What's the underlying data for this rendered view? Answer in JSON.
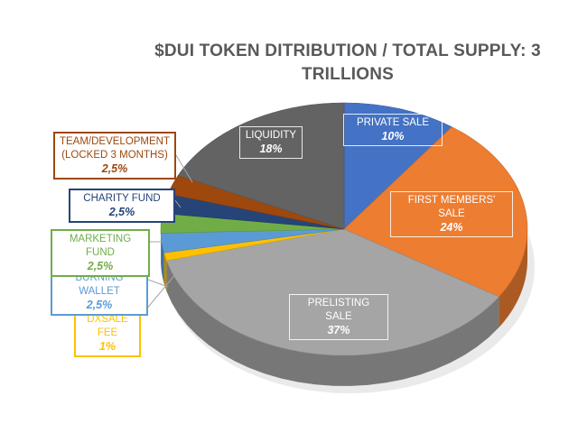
{
  "chart_data": {
    "type": "pie",
    "title": "$DUI TOKEN DITRIBUTION    /    TOTAL SUPPLY: 3 TRILLIONS",
    "slices": [
      {
        "label": "PRIVATE SALE",
        "value": 10,
        "value_label": "10%",
        "color": "#4472c4"
      },
      {
        "label": "FIRST MEMBERS' SALE",
        "value": 24,
        "value_label": "24%",
        "color": "#ed7d31"
      },
      {
        "label": "PRELISTING SALE",
        "value": 37,
        "value_label": "37%",
        "color": "#a5a5a5"
      },
      {
        "label": "DXSALE FEE",
        "value": 1,
        "value_label": "1%",
        "color": "#ffc000"
      },
      {
        "label": "BURNING WALLET",
        "value": 2.5,
        "value_label": "2,5%",
        "color": "#5b9bd5"
      },
      {
        "label": "MARKETING FUND",
        "value": 2.5,
        "value_label": "2,5%",
        "color": "#70ad47"
      },
      {
        "label": "CHARITY FUND",
        "value": 2.5,
        "value_label": "2,5%",
        "color": "#264478"
      },
      {
        "label": "TEAM/DEVELOPMENT (LOCKED 3 MONTHS)",
        "value": 2.5,
        "value_label": "2,5%",
        "color": "#9e480e"
      },
      {
        "label": "LIQUIDITY",
        "value": 18,
        "value_label": "18%",
        "color": "#636363"
      }
    ],
    "legend": "none"
  }
}
